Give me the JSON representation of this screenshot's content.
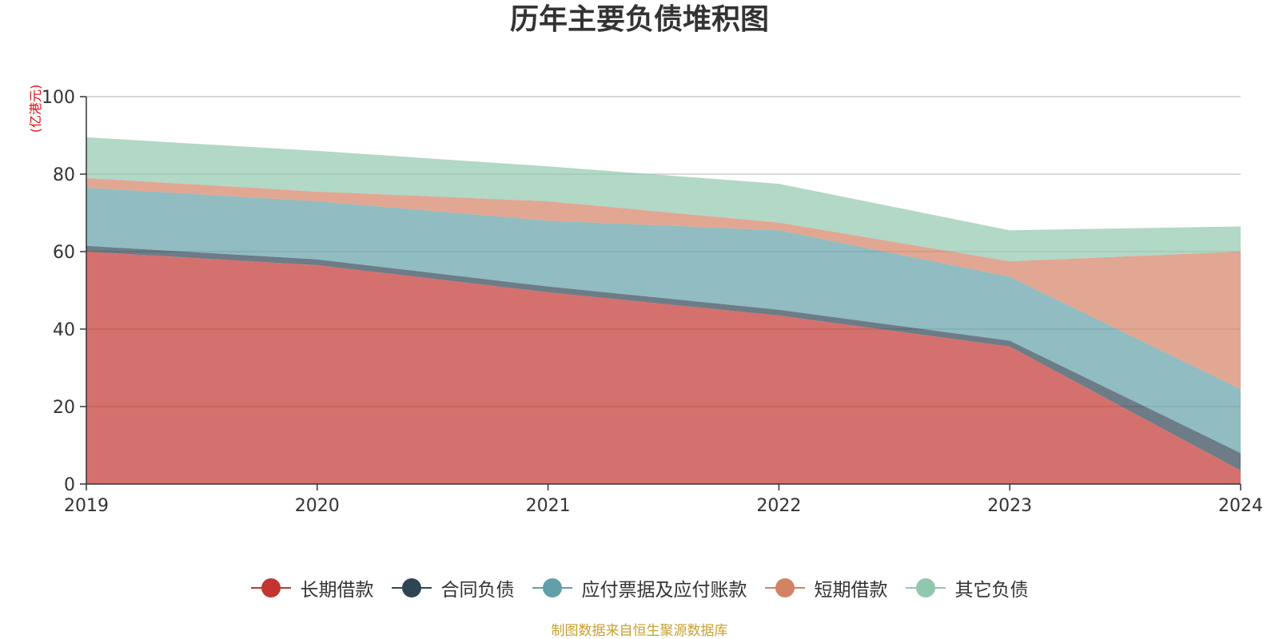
{
  "title": "历年主要负债堆积图",
  "source_note": "制图数据来自恒生聚源数据库",
  "chart_data": {
    "type": "area",
    "stacked": true,
    "title": "历年主要负债堆积图",
    "ylabel": "(亿港元)",
    "xlabel": "",
    "x": [
      "2019",
      "2020",
      "2021",
      "2022",
      "2023",
      "2024"
    ],
    "ylim": [
      0,
      100
    ],
    "yticks": [
      0,
      20,
      40,
      60,
      80,
      100
    ],
    "grid": true,
    "legend_position": "bottom",
    "series": [
      {
        "name": "长期借款",
        "color": "#c23531",
        "values": [
          60.0,
          56.5,
          49.5,
          43.5,
          35.5,
          3.5
        ]
      },
      {
        "name": "合同负债",
        "color": "#2f4554",
        "values": [
          1.5,
          1.5,
          1.5,
          1.5,
          1.5,
          4.5
        ]
      },
      {
        "name": "应付票据及应付账款",
        "color": "#61a0a8",
        "values": [
          15.0,
          15.0,
          17.0,
          20.5,
          16.5,
          16.5
        ]
      },
      {
        "name": "短期借款",
        "color": "#d48265",
        "values": [
          2.5,
          2.5,
          5.0,
          2.0,
          4.0,
          35.5
        ]
      },
      {
        "name": "其它负债",
        "color": "#91c7ae",
        "values": [
          10.5,
          10.5,
          9.0,
          10.0,
          8.0,
          6.5
        ]
      }
    ]
  }
}
